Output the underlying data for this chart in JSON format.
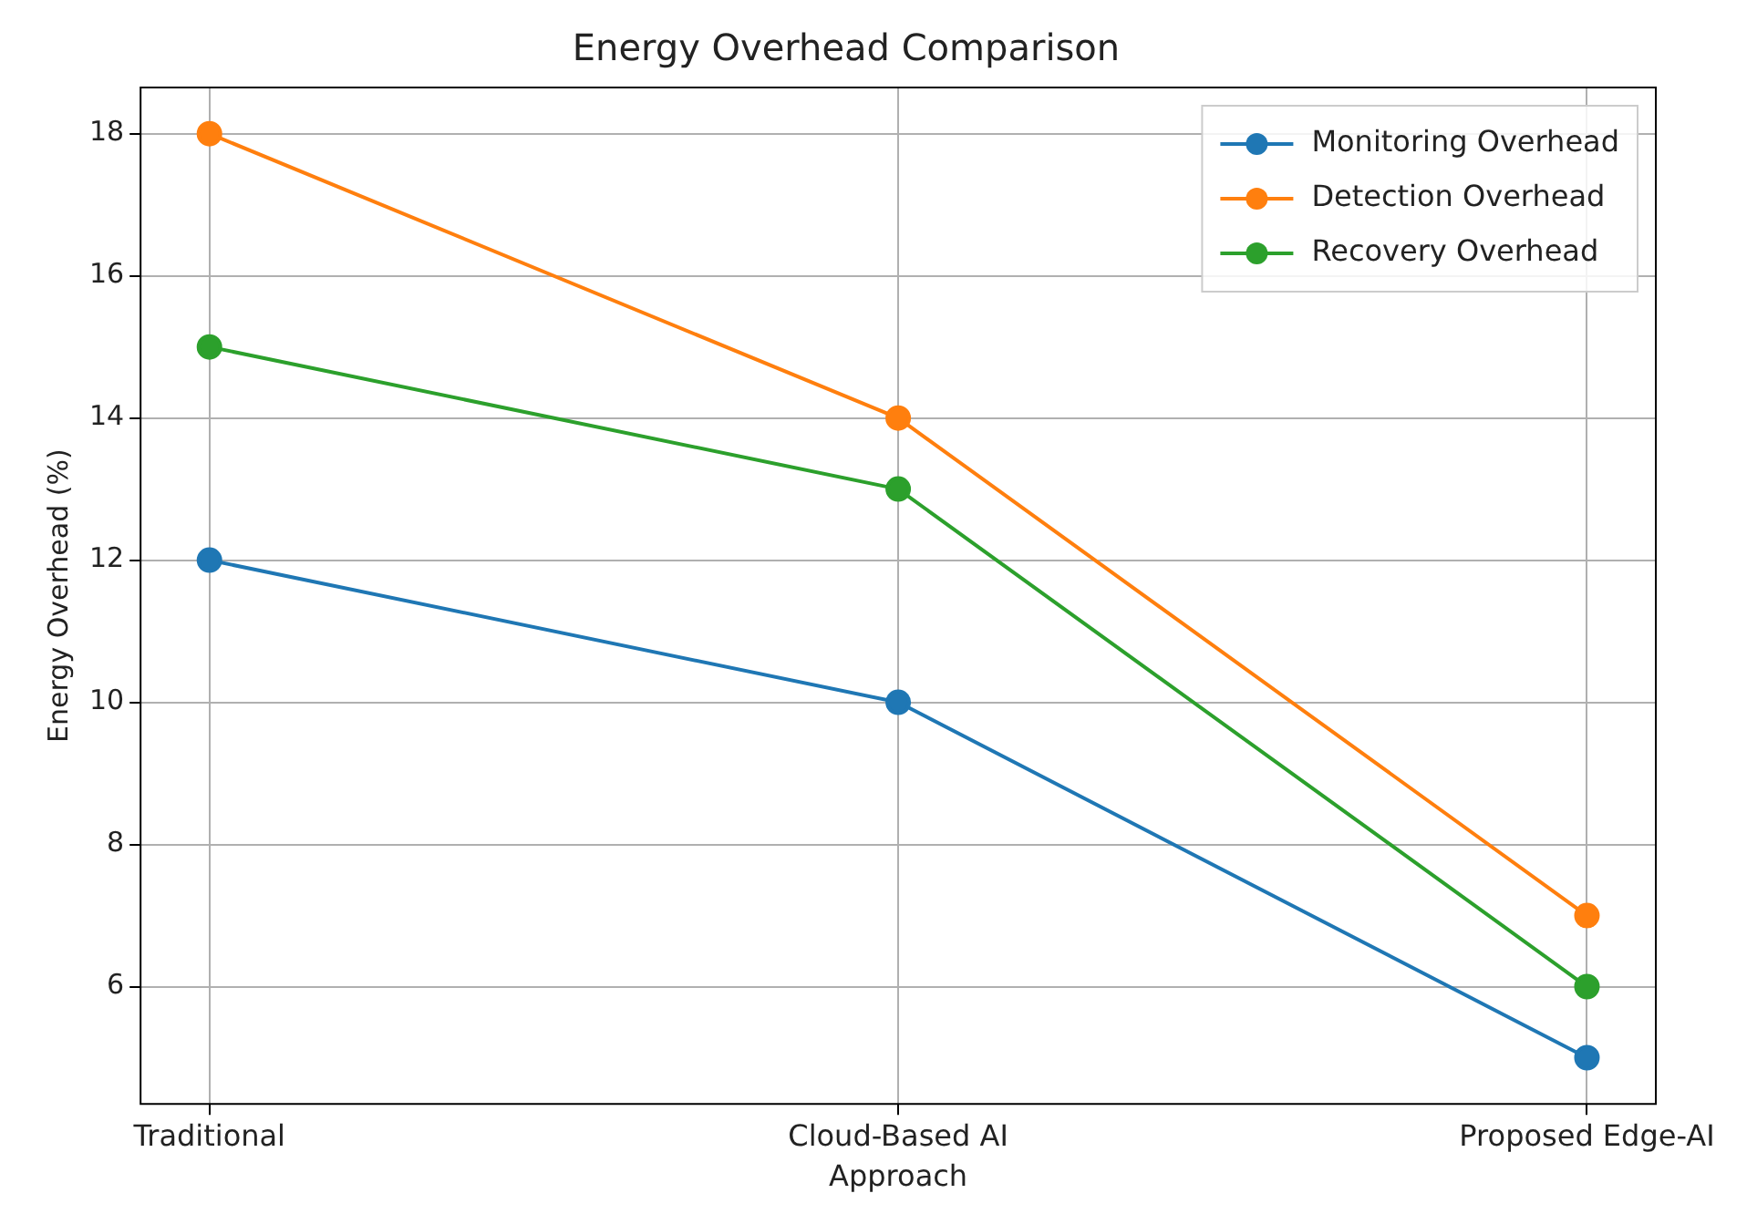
{
  "chart_data": {
    "type": "line",
    "title": "Energy Overhead Comparison",
    "xlabel": "Approach",
    "ylabel": "Energy Overhead (%)",
    "categories": [
      "Traditional",
      "Cloud-Based AI",
      "Proposed Edge-AI"
    ],
    "series": [
      {
        "name": "Monitoring Overhead",
        "color": "#1f77b4",
        "values": [
          12,
          10,
          5
        ]
      },
      {
        "name": "Detection Overhead",
        "color": "#ff7f0e",
        "values": [
          18,
          14,
          7
        ]
      },
      {
        "name": "Recovery Overhead",
        "color": "#2ca02c",
        "values": [
          15,
          13,
          6
        ]
      }
    ],
    "ylim": [
      4.35,
      18.65
    ],
    "yticks": [
      6,
      8,
      10,
      12,
      14,
      16,
      18
    ],
    "grid": true,
    "legend": "top right",
    "marker": "circle",
    "line_style": "solid"
  }
}
